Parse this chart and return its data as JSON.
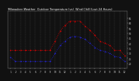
{
  "title": "Milwaukee Weather  Outdoor Temperature (vs)  Wind Chill (Last 24 Hours)",
  "bg_color": "#111111",
  "plot_bg_color": "#111111",
  "grid_color": "#444444",
  "x_labels": [
    "1",
    "2",
    "3",
    "4",
    "5",
    "6",
    "7",
    "8",
    "9",
    "10",
    "11",
    "12",
    "1",
    "2",
    "3",
    "4",
    "5",
    "6",
    "7",
    "8",
    "9",
    "10",
    "11",
    "12"
  ],
  "hours": [
    0,
    1,
    2,
    3,
    4,
    5,
    6,
    7,
    8,
    9,
    10,
    11,
    12,
    13,
    14,
    15,
    16,
    17,
    18,
    19,
    20,
    21,
    22,
    23
  ],
  "temp": [
    33,
    33,
    33,
    33,
    33,
    33,
    33,
    33,
    33,
    42,
    52,
    58,
    62,
    62,
    62,
    57,
    53,
    48,
    42,
    40,
    38,
    33,
    33,
    28
  ],
  "windchill": [
    26,
    22,
    22,
    22,
    22,
    22,
    22,
    22,
    22,
    30,
    38,
    42,
    46,
    47,
    46,
    44,
    40,
    36,
    33,
    32,
    30,
    27,
    26,
    22
  ],
  "temp_color": "#dd0000",
  "windchill_color": "#2222cc",
  "ylim_min": 15,
  "ylim_max": 72,
  "y_ticks": [
    20,
    25,
    30,
    35,
    40,
    45,
    50,
    55,
    60,
    65
  ],
  "y_tick_labels": [
    "20",
    "25",
    "30",
    "35",
    "40",
    "45",
    "50",
    "55",
    "60",
    "65"
  ],
  "line_width": 0.6,
  "marker_size": 1.2,
  "title_color": "#ffffff",
  "tick_color": "#cccccc",
  "spine_color": "#888888"
}
